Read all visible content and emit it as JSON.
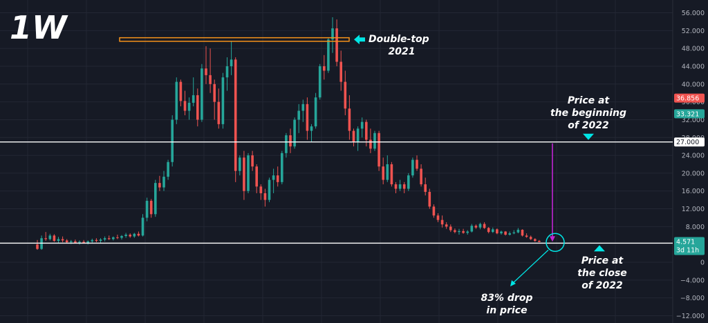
{
  "colors": {
    "background": "#161a25",
    "grid": "#232734",
    "up": "#26a69a",
    "down": "#ef5350",
    "reference_line": "#ffffff",
    "double_top_box": "#f7931a",
    "cyan_annotation": "#00e5e5",
    "magenta_arrow": "#c026d3",
    "axis_text": "#b2b5be"
  },
  "chart_data": {
    "type": "candlestick",
    "interval_label": "1W",
    "y_axis": {
      "position": "right",
      "ylim": [
        -12,
        58
      ],
      "ticks": [
        56,
        52,
        48,
        44,
        40,
        36,
        32,
        28,
        24,
        20,
        16,
        12,
        8,
        4,
        0,
        -4,
        -8,
        -12
      ],
      "tick_labels": [
        "56.000",
        "52.000",
        "48.000",
        "44.000",
        "40.000",
        "36.000",
        "32.000",
        "28.000",
        "24.000",
        "20.000",
        "16.000",
        "12.000",
        "8.000",
        "4.000",
        "0",
        "−4.000",
        "−8.000",
        "−12.000"
      ]
    },
    "grid": true,
    "candles": [
      [
        4.0,
        5.0,
        2.8,
        3.0
      ],
      [
        3.0,
        6.0,
        2.8,
        5.4
      ],
      [
        5.4,
        6.8,
        4.8,
        5.2
      ],
      [
        5.2,
        6.4,
        4.9,
        6.0
      ],
      [
        6.0,
        6.3,
        4.6,
        4.8
      ],
      [
        4.8,
        5.7,
        4.3,
        5.2
      ],
      [
        5.2,
        5.8,
        4.5,
        4.9
      ],
      [
        4.9,
        5.2,
        4.2,
        4.5
      ],
      [
        4.5,
        5.0,
        4.1,
        4.7
      ],
      [
        4.7,
        5.1,
        4.2,
        4.4
      ],
      [
        4.4,
        4.9,
        4.0,
        4.6
      ],
      [
        4.6,
        5.0,
        4.2,
        4.3
      ],
      [
        4.3,
        4.9,
        4.0,
        4.7
      ],
      [
        4.7,
        5.3,
        4.4,
        5.0
      ],
      [
        5.0,
        5.4,
        4.5,
        4.8
      ],
      [
        4.8,
        5.4,
        4.4,
        5.1
      ],
      [
        5.1,
        5.8,
        4.7,
        5.4
      ],
      [
        5.4,
        6.0,
        5.0,
        5.2
      ],
      [
        5.2,
        5.8,
        4.9,
        5.6
      ],
      [
        5.6,
        6.2,
        5.2,
        5.5
      ],
      [
        5.5,
        6.1,
        5.1,
        5.9
      ],
      [
        5.9,
        6.6,
        5.5,
        6.2
      ],
      [
        6.2,
        6.5,
        5.5,
        5.8
      ],
      [
        5.8,
        6.6,
        5.5,
        6.4
      ],
      [
        6.4,
        6.9,
        5.8,
        6.0
      ],
      [
        6.0,
        10.8,
        5.8,
        10.0
      ],
      [
        10.0,
        14.5,
        9.2,
        13.8
      ],
      [
        13.8,
        14.2,
        10.0,
        10.8
      ],
      [
        10.8,
        18.5,
        10.2,
        17.8
      ],
      [
        17.8,
        19.4,
        16.0,
        16.8
      ],
      [
        16.8,
        20.5,
        16.0,
        19.2
      ],
      [
        19.2,
        23.0,
        18.5,
        22.5
      ],
      [
        22.5,
        33.0,
        21.5,
        32.0
      ],
      [
        32.0,
        41.5,
        31.0,
        40.5
      ],
      [
        40.5,
        41.0,
        35.0,
        36.2
      ],
      [
        36.2,
        38.5,
        33.0,
        34.0
      ],
      [
        34.0,
        37.0,
        32.0,
        35.8
      ],
      [
        35.8,
        41.5,
        35.0,
        37.5
      ],
      [
        37.5,
        39.0,
        30.5,
        32.0
      ],
      [
        32.0,
        44.5,
        31.5,
        43.5
      ],
      [
        43.5,
        48.5,
        40.0,
        42.0
      ],
      [
        42.0,
        48.0,
        38.0,
        40.0
      ],
      [
        40.0,
        41.0,
        32.0,
        36.0
      ],
      [
        36.0,
        39.0,
        30.0,
        31.0
      ],
      [
        31.0,
        42.5,
        30.0,
        41.5
      ],
      [
        41.5,
        46.0,
        38.5,
        44.0
      ],
      [
        44.0,
        49.5,
        42.0,
        45.5
      ],
      [
        45.5,
        46.0,
        18.0,
        20.5
      ],
      [
        20.5,
        24.0,
        19.5,
        23.5
      ],
      [
        23.5,
        25.0,
        14.0,
        16.0
      ],
      [
        16.0,
        24.5,
        15.5,
        24.0
      ],
      [
        24.0,
        25.0,
        20.5,
        21.5
      ],
      [
        21.5,
        22.0,
        15.5,
        17.0
      ],
      [
        17.0,
        17.5,
        14.0,
        15.5
      ],
      [
        15.5,
        16.5,
        12.5,
        14.0
      ],
      [
        14.0,
        19.0,
        13.5,
        18.5
      ],
      [
        18.5,
        21.0,
        15.5,
        19.5
      ],
      [
        19.5,
        21.5,
        17.0,
        18.0
      ],
      [
        18.0,
        25.0,
        17.5,
        24.5
      ],
      [
        24.5,
        29.0,
        23.5,
        28.5
      ],
      [
        28.5,
        30.0,
        24.5,
        26.0
      ],
      [
        26.0,
        32.5,
        25.5,
        32.0
      ],
      [
        32.0,
        35.5,
        29.0,
        34.0
      ],
      [
        34.0,
        36.5,
        31.5,
        35.5
      ],
      [
        35.5,
        37.0,
        27.5,
        29.5
      ],
      [
        29.5,
        31.0,
        27.0,
        30.5
      ],
      [
        30.5,
        38.0,
        30.0,
        37.0
      ],
      [
        37.0,
        44.5,
        36.5,
        44.0
      ],
      [
        44.0,
        46.5,
        41.0,
        43.0
      ],
      [
        43.0,
        50.5,
        42.5,
        50.0
      ],
      [
        50.0,
        55.0,
        47.0,
        52.5
      ],
      [
        52.5,
        54.5,
        44.0,
        45.0
      ],
      [
        45.0,
        47.5,
        38.5,
        40.5
      ],
      [
        40.5,
        43.0,
        33.0,
        34.5
      ],
      [
        34.5,
        37.5,
        27.5,
        29.5
      ],
      [
        29.5,
        30.0,
        26.0,
        27.0
      ],
      [
        27.0,
        30.5,
        25.0,
        30.0
      ],
      [
        30.0,
        32.5,
        28.0,
        31.5
      ],
      [
        31.5,
        32.0,
        26.0,
        27.5
      ],
      [
        27.5,
        30.0,
        24.5,
        25.5
      ],
      [
        25.5,
        29.5,
        25.0,
        29.0
      ],
      [
        29.0,
        29.5,
        20.5,
        21.5
      ],
      [
        21.5,
        23.5,
        17.5,
        18.5
      ],
      [
        18.5,
        24.0,
        18.0,
        22.0
      ],
      [
        22.0,
        22.5,
        17.0,
        17.5
      ],
      [
        17.5,
        18.0,
        15.5,
        16.5
      ],
      [
        16.5,
        18.5,
        16.0,
        17.5
      ],
      [
        17.5,
        18.0,
        15.5,
        16.5
      ],
      [
        16.5,
        20.0,
        16.0,
        19.5
      ],
      [
        19.5,
        23.5,
        19.0,
        23.0
      ],
      [
        23.0,
        24.0,
        20.5,
        21.0
      ],
      [
        21.0,
        22.0,
        17.0,
        17.5
      ],
      [
        17.5,
        19.0,
        15.0,
        15.8
      ],
      [
        15.8,
        16.5,
        12.0,
        12.5
      ],
      [
        12.5,
        13.0,
        10.0,
        10.5
      ],
      [
        10.5,
        11.0,
        9.0,
        9.5
      ],
      [
        9.5,
        10.5,
        7.8,
        8.5
      ],
      [
        8.5,
        9.0,
        7.5,
        8.0
      ],
      [
        8.0,
        8.5,
        6.8,
        7.2
      ],
      [
        7.2,
        7.6,
        6.5,
        6.8
      ],
      [
        6.8,
        7.5,
        6.2,
        7.0
      ],
      [
        7.0,
        7.5,
        6.4,
        6.6
      ],
      [
        6.6,
        7.2,
        6.2,
        6.9
      ],
      [
        6.9,
        8.6,
        6.7,
        8.2
      ],
      [
        8.2,
        8.5,
        7.5,
        7.8
      ],
      [
        7.8,
        8.9,
        7.4,
        8.6
      ],
      [
        8.6,
        9.0,
        7.5,
        7.7
      ],
      [
        7.7,
        7.9,
        6.5,
        6.8
      ],
      [
        6.8,
        7.8,
        6.6,
        7.4
      ],
      [
        7.4,
        7.6,
        6.3,
        6.5
      ],
      [
        6.5,
        7.1,
        6.2,
        6.9
      ],
      [
        6.9,
        7.0,
        6.0,
        6.2
      ],
      [
        6.2,
        6.9,
        6.0,
        6.5
      ],
      [
        6.5,
        7.2,
        6.3,
        6.7
      ],
      [
        6.7,
        7.7,
        6.5,
        7.3
      ],
      [
        7.3,
        7.4,
        5.8,
        6.0
      ],
      [
        6.0,
        6.5,
        5.5,
        5.7
      ],
      [
        5.7,
        6.0,
        5.0,
        5.2
      ],
      [
        5.2,
        5.4,
        4.6,
        4.8
      ],
      [
        4.8,
        5.0,
        4.5,
        4.57
      ]
    ],
    "double_top_range": [
      49.6,
      50.4
    ],
    "horizontal_lines": [
      27.0,
      4.3
    ],
    "price_badges": [
      {
        "value": 36.856,
        "label": "36.856",
        "color": "#ef5350",
        "text_color": "#ffffff"
      },
      {
        "value": 33.321,
        "label": "33.321",
        "color": "#26a69a",
        "text_color": "#ffffff"
      },
      {
        "value": 27.0,
        "label": "27.000",
        "color": "#ffffff",
        "text_color": "#131722"
      },
      {
        "value": 4.3,
        "label": "4.300",
        "color": "#ffffff",
        "text_color": "#131722"
      }
    ],
    "last_price_badge": {
      "value": 4.571,
      "label": "4.571",
      "countdown": "3d 11h",
      "color": "#26a69a",
      "text_color": "#ffffff"
    },
    "annotations": {
      "double_top": [
        "Double-top",
        "2021"
      ],
      "beginning_2022": [
        "Price at",
        "the beginning",
        "of 2022"
      ],
      "close_2022": [
        "Price at",
        "the close",
        "of 2022"
      ],
      "drop": [
        "83% drop",
        "in price"
      ]
    }
  }
}
